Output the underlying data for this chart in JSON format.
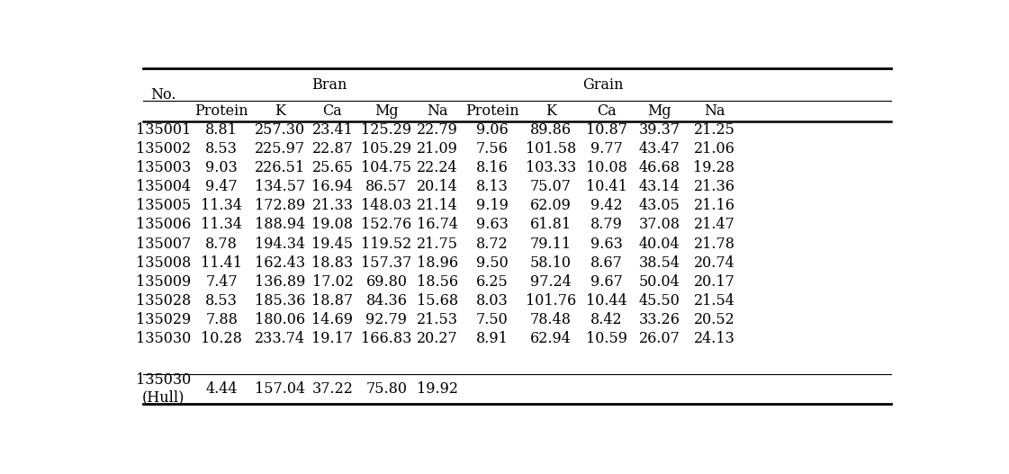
{
  "no_col": [
    "135001",
    "135002",
    "135003",
    "135004",
    "135005",
    "135006",
    "135007",
    "135008",
    "135009",
    "135028",
    "135029",
    "135030"
  ],
  "hull_no": "135030\n(Hull)",
  "bran_protein": [
    "8.81",
    "8.53",
    "9.03",
    "9.47",
    "11.34",
    "11.34",
    "8.78",
    "11.41",
    "7.47",
    "8.53",
    "7.88",
    "10.28"
  ],
  "bran_K": [
    "257.30",
    "225.97",
    "226.51",
    "134.57",
    "172.89",
    "188.94",
    "194.34",
    "162.43",
    "136.89",
    "185.36",
    "180.06",
    "233.74"
  ],
  "bran_Ca": [
    "23.41",
    "22.87",
    "25.65",
    "16.94",
    "21.33",
    "19.08",
    "19.45",
    "18.83",
    "17.02",
    "18.87",
    "14.69",
    "19.17"
  ],
  "bran_Mg": [
    "125.29",
    "105.29",
    "104.75",
    "86.57",
    "148.03",
    "152.76",
    "119.52",
    "157.37",
    "69.80",
    "84.36",
    "92.79",
    "166.83"
  ],
  "bran_Na": [
    "22.79",
    "21.09",
    "22.24",
    "20.14",
    "21.14",
    "16.74",
    "21.75",
    "18.96",
    "18.56",
    "15.68",
    "21.53",
    "20.27"
  ],
  "grain_protein": [
    "9.06",
    "7.56",
    "8.16",
    "8.13",
    "9.19",
    "9.63",
    "8.72",
    "9.50",
    "6.25",
    "8.03",
    "7.50",
    "8.91"
  ],
  "grain_K": [
    "89.86",
    "101.58",
    "103.33",
    "75.07",
    "62.09",
    "61.81",
    "79.11",
    "58.10",
    "97.24",
    "101.76",
    "78.48",
    "62.94"
  ],
  "grain_Ca": [
    "10.87",
    "9.77",
    "10.08",
    "10.41",
    "9.42",
    "8.79",
    "9.63",
    "8.67",
    "9.67",
    "10.44",
    "8.42",
    "10.59"
  ],
  "grain_Mg": [
    "39.37",
    "43.47",
    "46.68",
    "43.14",
    "43.05",
    "37.08",
    "40.04",
    "38.54",
    "50.04",
    "45.50",
    "33.26",
    "26.07"
  ],
  "grain_Na": [
    "21.25",
    "21.06",
    "19.28",
    "21.36",
    "21.16",
    "21.47",
    "21.78",
    "20.74",
    "20.17",
    "21.54",
    "20.52",
    "24.13"
  ],
  "hull_bran_protein": "4.44",
  "hull_bran_K": "157.04",
  "hull_bran_Ca": "37.22",
  "hull_bran_Mg": "75.80",
  "hull_bran_Na": "19.92",
  "col_headers_bran": [
    "Protein",
    "K",
    "Ca",
    "Mg",
    "Na"
  ],
  "col_headers_grain": [
    "Protein",
    "K",
    "Ca",
    "Mg",
    "Na"
  ],
  "bran_label": "Bran",
  "grain_label": "Grain",
  "no_label": "No.",
  "bg_color": "#ffffff",
  "text_color": "#000000",
  "font_size": 11.5,
  "header_font_size": 11.5
}
